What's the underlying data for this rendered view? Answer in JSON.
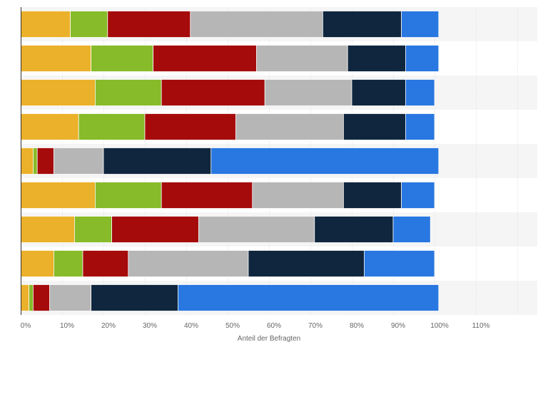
{
  "chart_data": {
    "type": "bar",
    "orientation": "horizontal",
    "stacked": true,
    "title": "",
    "xlabel": "Anteil der Befragten",
    "ylabel": "",
    "xlim": [
      0,
      120
    ],
    "xticks": [
      0,
      10,
      20,
      30,
      40,
      50,
      60,
      70,
      80,
      90,
      100,
      110
    ],
    "xtick_labels": [
      "0%",
      "10%",
      "20%",
      "30%",
      "40%",
      "50%",
      "60%",
      "70%",
      "80%",
      "90%",
      "100%",
      "110%"
    ],
    "grid": true,
    "categories": [
      "",
      "",
      "",
      "",
      "",
      "",
      "",
      "",
      ""
    ],
    "series": [
      {
        "name": "",
        "color": "#ebb12a",
        "values": [
          12,
          17,
          18,
          14,
          3,
          18,
          13,
          8,
          2
        ]
      },
      {
        "name": "",
        "color": "#87bb29",
        "values": [
          9,
          15,
          16,
          16,
          1,
          16,
          9,
          7,
          1
        ]
      },
      {
        "name": "",
        "color": "#a50b0b",
        "values": [
          20,
          25,
          25,
          22,
          4,
          22,
          21,
          11,
          4
        ]
      },
      {
        "name": "",
        "color": "#b6b6b6",
        "values": [
          32,
          22,
          21,
          26,
          12,
          22,
          28,
          29,
          10
        ]
      },
      {
        "name": "",
        "color": "#10263e",
        "values": [
          19,
          14,
          13,
          15,
          26,
          14,
          19,
          28,
          21
        ]
      },
      {
        "name": "",
        "color": "#2977e0",
        "values": [
          9,
          8,
          7,
          7,
          55,
          8,
          9,
          17,
          63
        ]
      }
    ]
  }
}
